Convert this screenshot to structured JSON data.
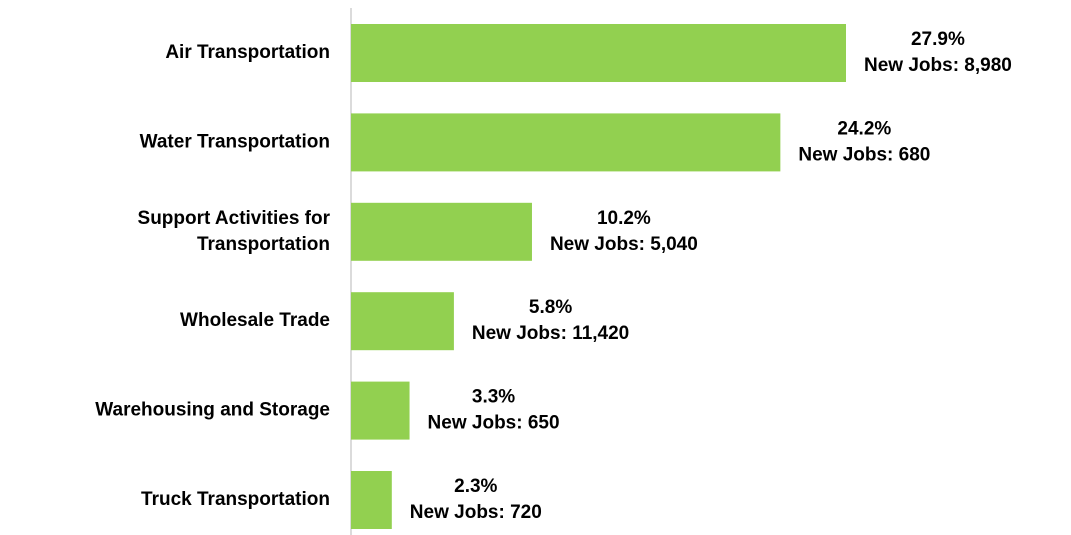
{
  "chart_data": {
    "type": "bar",
    "orientation": "horizontal",
    "color": "#92d050",
    "categories": [
      "Air Transportation",
      "Water Transportation",
      "Support Activities for Transportation",
      "Wholesale Trade",
      "Warehousing and Storage",
      "Truck Transportation"
    ],
    "values": [
      27.9,
      24.2,
      10.2,
      5.8,
      3.3,
      2.3
    ],
    "value_labels": [
      "27.9%",
      "24.2%",
      "10.2%",
      "5.8%",
      "3.3%",
      "2.3%"
    ],
    "jobs_labels": [
      "New Jobs: 8,980",
      "New Jobs: 680",
      "New Jobs: 5,040",
      "New Jobs: 11,420",
      "New Jobs: 650",
      "New Jobs: 720"
    ]
  }
}
